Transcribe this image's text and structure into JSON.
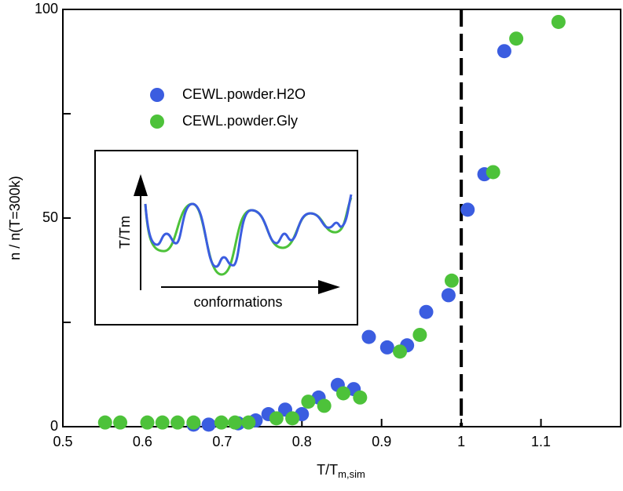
{
  "chart_data": {
    "type": "scatter",
    "xlabel": "T/T",
    "xlabel_sub": "m,sim",
    "ylabel": "n / n(T=300k)",
    "xlim": [
      0.5,
      1.2
    ],
    "ylim": [
      0,
      100
    ],
    "xticks": [
      0.5,
      0.6,
      0.7,
      0.8,
      0.9,
      1,
      1.1
    ],
    "yticks": [
      0,
      50,
      100
    ],
    "yminor_ticks": [
      25,
      75
    ],
    "vline": 1,
    "legend": "upper left",
    "series": [
      {
        "name": "CEWL.powder.H2O",
        "color": "#3b5de0",
        "x": [
          0.664,
          0.683,
          0.72,
          0.742,
          0.758,
          0.779,
          0.8,
          0.821,
          0.845,
          0.865,
          0.884,
          0.907,
          0.932,
          0.956,
          0.984,
          1.008,
          1.029,
          1.054
        ],
        "values": [
          0.5,
          0.5,
          0.8,
          1.5,
          3,
          4.1,
          3,
          7,
          10,
          9,
          21.5,
          19,
          19.5,
          27.5,
          31.5,
          52,
          60.5,
          90
        ]
      },
      {
        "name": "CEWL.powder.Gly",
        "color": "#4dc23a",
        "x": [
          0.553,
          0.572,
          0.606,
          0.625,
          0.644,
          0.664,
          0.699,
          0.716,
          0.733,
          0.768,
          0.788,
          0.808,
          0.828,
          0.852,
          0.873,
          0.923,
          0.948,
          0.988,
          1.04,
          1.069,
          1.122
        ],
        "values": [
          1,
          1,
          1,
          1,
          1,
          1,
          1,
          1,
          1,
          2,
          2,
          6,
          5,
          8,
          7,
          18,
          22,
          35,
          61,
          93,
          97
        ]
      }
    ],
    "inset": {
      "y_label": "T/Tm",
      "x_label": "conformations"
    }
  }
}
